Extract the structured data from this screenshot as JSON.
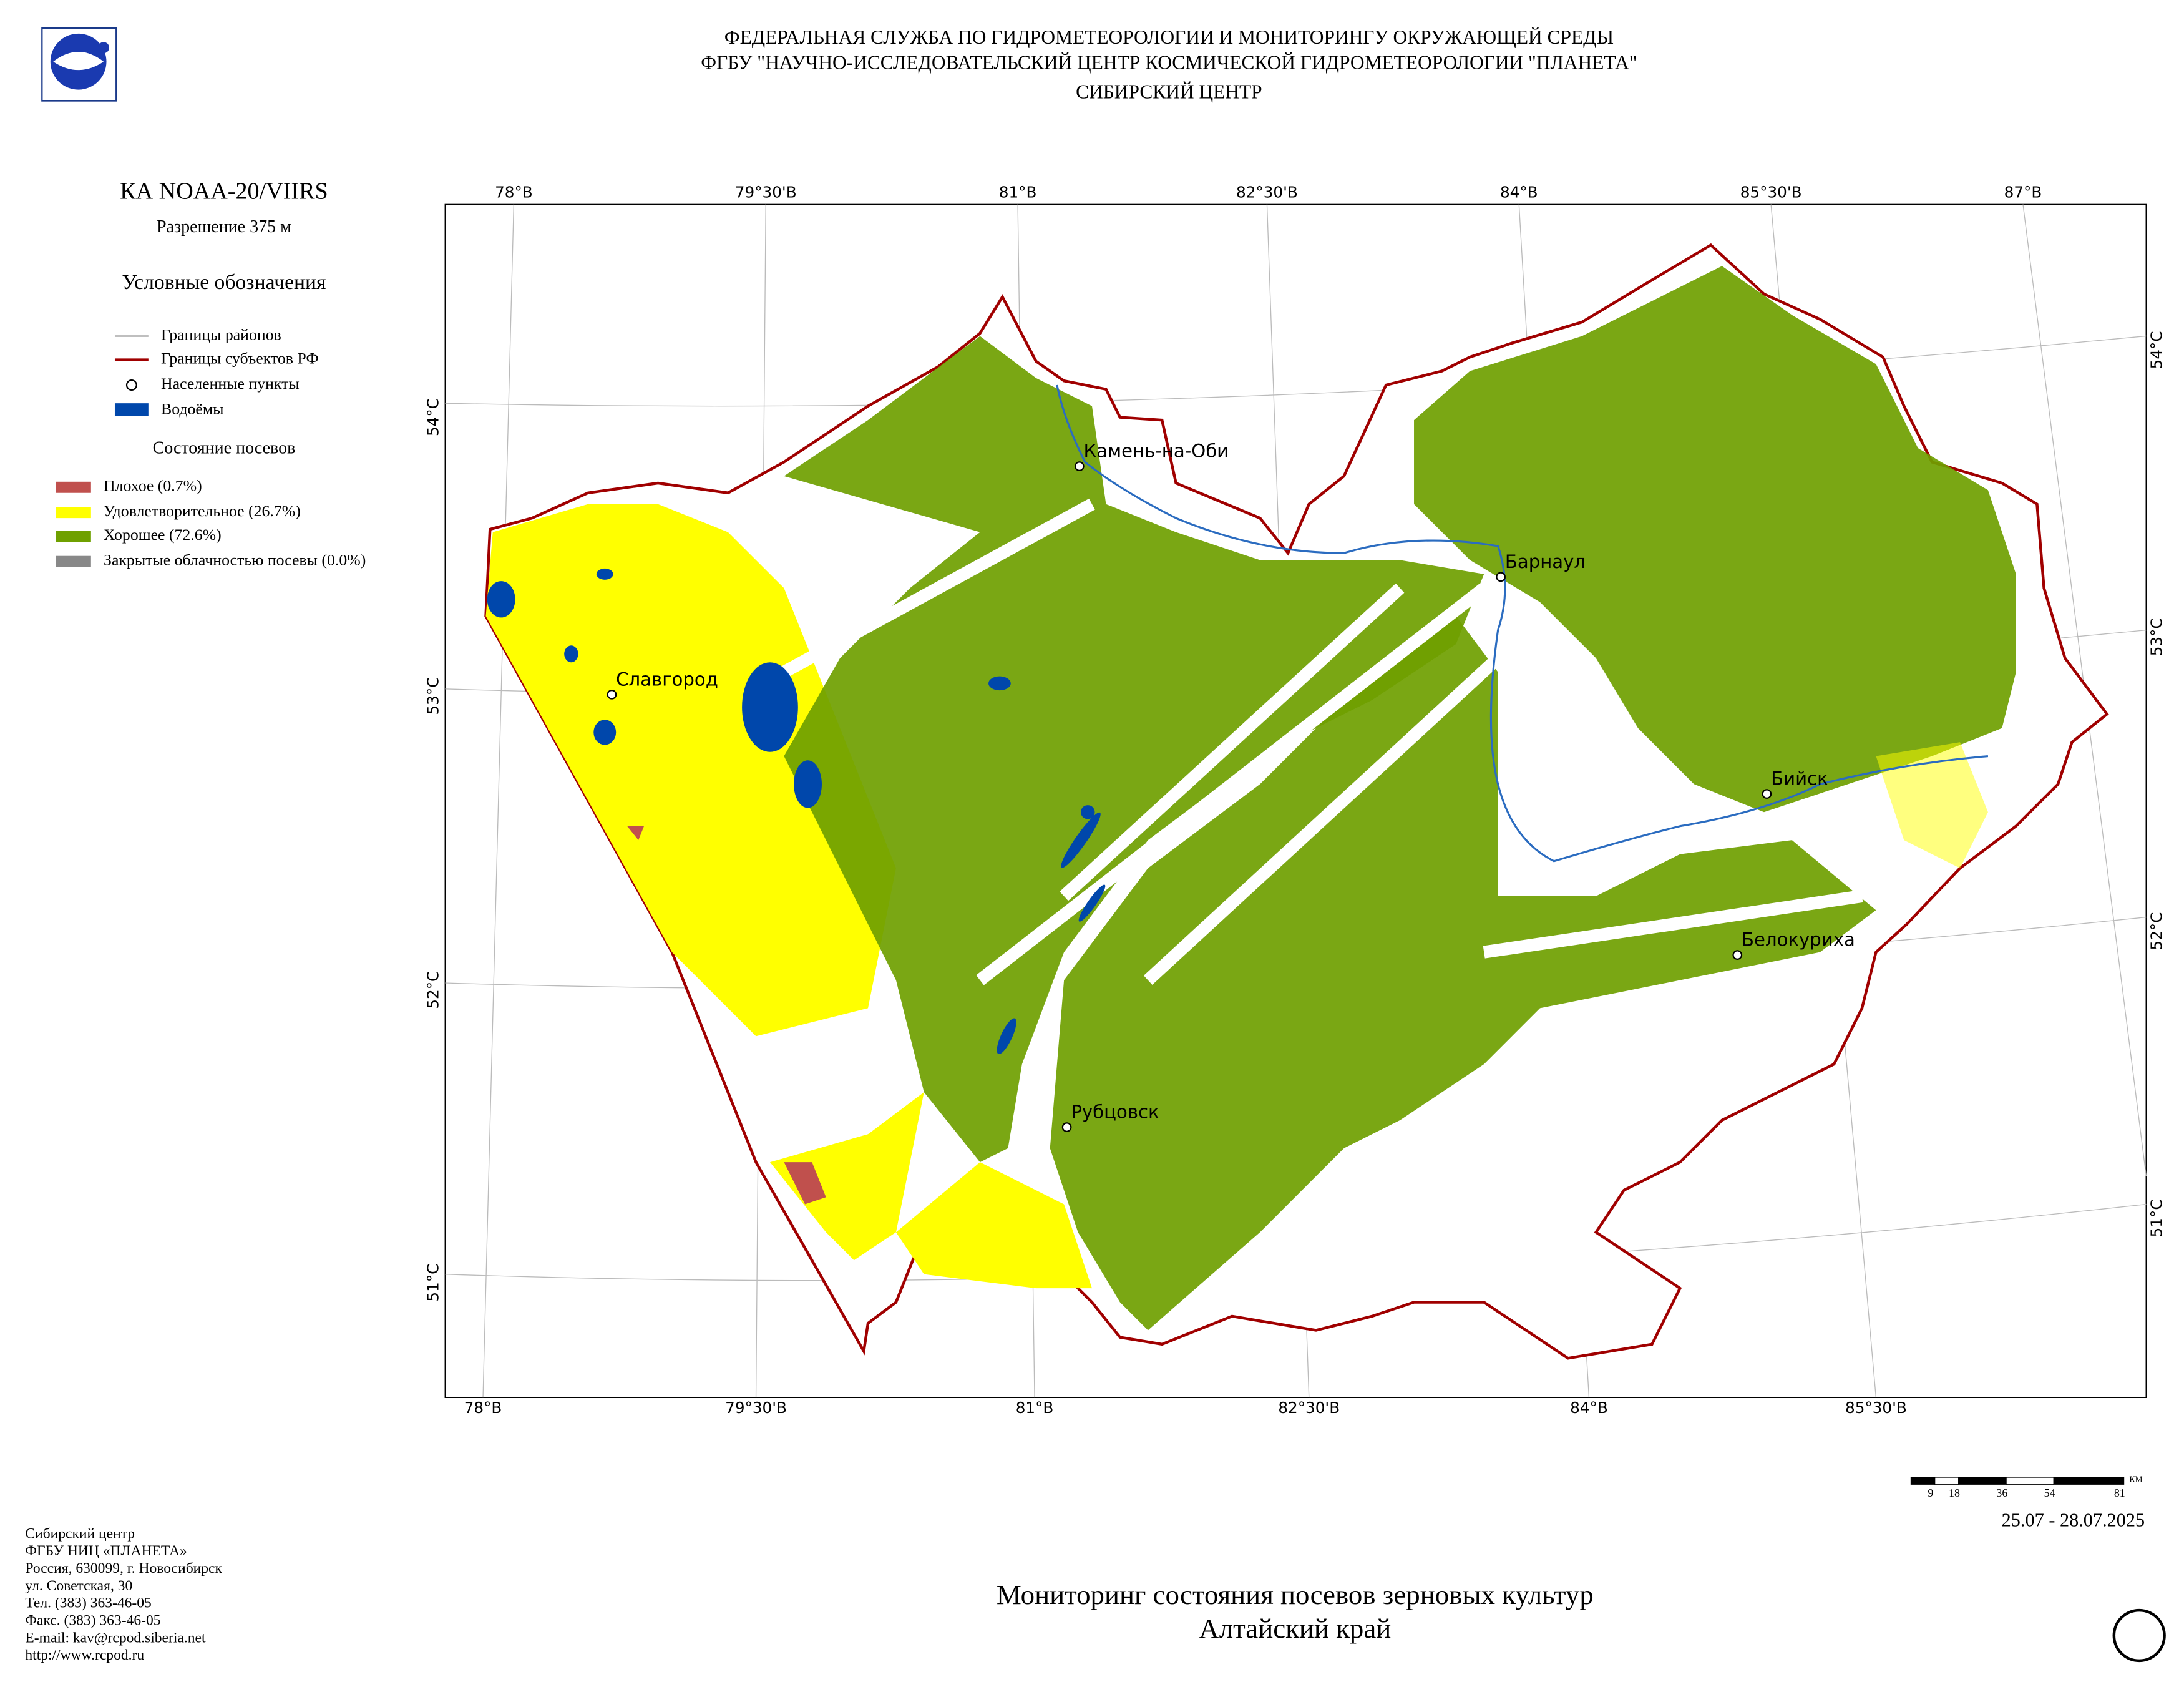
{
  "header": {
    "lines": [
      "ФЕДЕРАЛЬНАЯ СЛУЖБА ПО ГИДРОМЕТЕОРОЛОГИИ И МОНИТОРИНГУ ОКРУЖАЮЩЕЙ СРЕДЫ",
      "ФГБУ \"НАУЧНО-ИССЛЕДОВАТЕЛЬСКИЙ ЦЕНТР КОСМИЧЕСКОЙ ГИДРОМЕТЕОРОЛОГИИ \"ПЛАНЕТА\"",
      "СИБИРСКИЙ ЦЕНТР"
    ]
  },
  "left_panel": {
    "satellite": "КА NOAA-20/VIIRS",
    "resolution": "Разрешение 375 м",
    "legend_title": "Условные обозначения",
    "legend_items": [
      "Границы районов",
      "Границы субъектов РФ",
      "Населенные пункты",
      "Водоёмы"
    ],
    "crop_title": "Состояние посевов",
    "crop_items": [
      "Плохое (0.7%)",
      "Удовлетворительное (26.7%)",
      "Хорошее (72.6%)",
      "Закрытые облачностью посевы (0.0%)"
    ]
  },
  "map": {
    "top_lon_labels": [
      "78°В",
      "79°30'В",
      "81°В",
      "82°30'В",
      "84°В",
      "85°30'В",
      "87°В"
    ],
    "bottom_lon_labels": [
      "78°В",
      "79°30'В",
      "81°В",
      "82°30'В",
      "84°В",
      "85°30'В"
    ],
    "left_lat_labels": [
      "54°С",
      "53°С",
      "52°С",
      "51°С"
    ],
    "right_lat_labels": [
      "54°С",
      "53°С",
      "52°С",
      "51°С"
    ],
    "cities": [
      "Камень-на-Оби",
      "Славгород",
      "Барнаул",
      "Бийск",
      "Белокуриха",
      "Рубцовск"
    ]
  },
  "scale_bar": {
    "labels": [
      "9",
      "18",
      "36",
      "54",
      "81"
    ],
    "unit": "КМ"
  },
  "date": "25.07 - 28.07.2025",
  "title": {
    "lines": [
      "Мониторинг состояния посевов зерновых культур",
      "Алтайский край"
    ]
  },
  "footer": {
    "lines": [
      "Сибирский центр",
      "ФГБУ НИЦ «ПЛАНЕТА»",
      "Россия, 630099, г. Новосибирск",
      "ул. Советская, 30",
      "Тел. (383) 363-46-05",
      "Факс. (383) 363-46-05",
      "E-mail: kav@rcpod.siberia.net",
      "http://www.rcpod.ru"
    ]
  }
}
